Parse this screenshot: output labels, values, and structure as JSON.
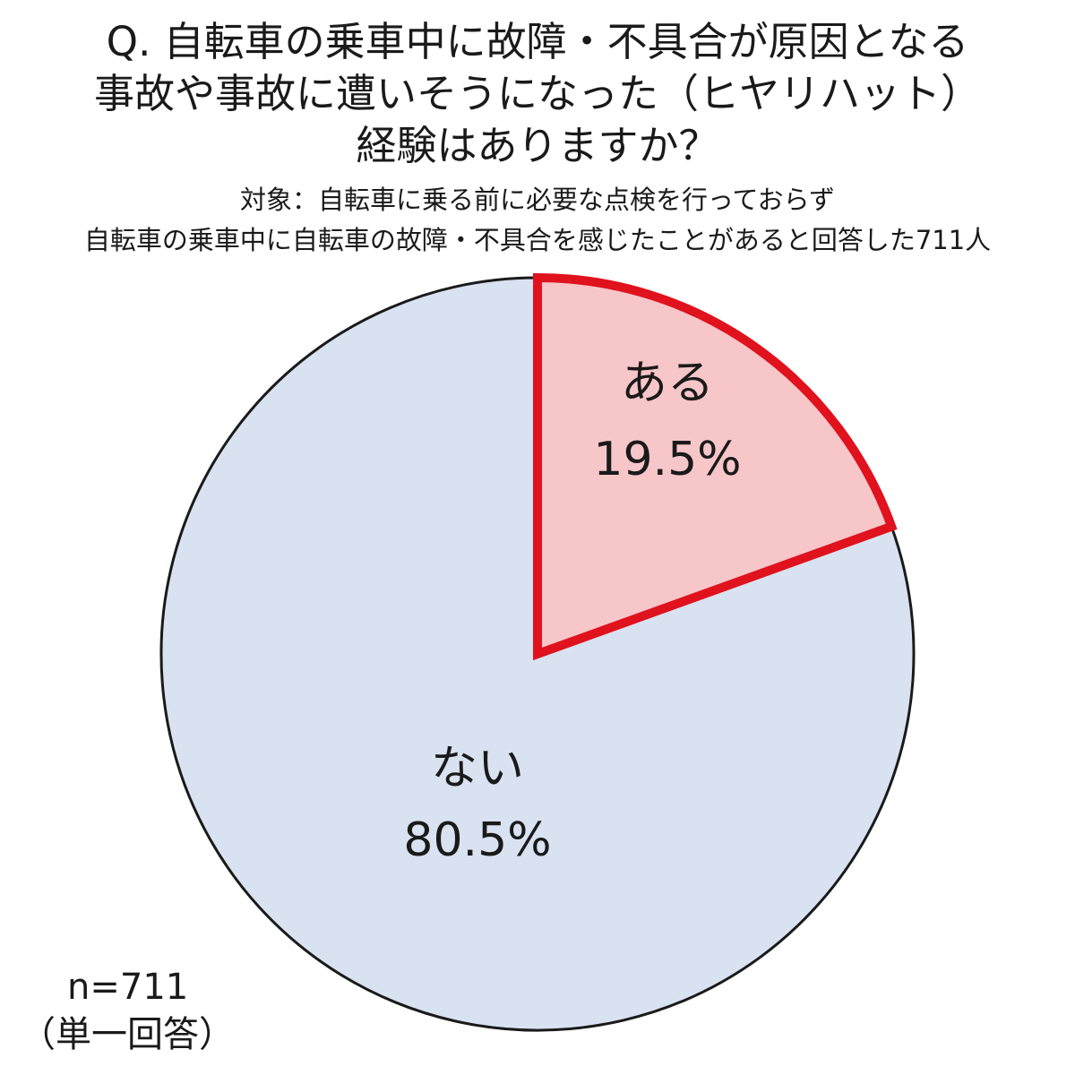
{
  "chart_data": {
    "type": "pie",
    "title_lines": [
      "Q. 自転車の乗車中に故障・不具合が原因となる",
      "事故や事故に遭いそうになった（ヒヤリハット）",
      "経験はありますか？"
    ],
    "subtitle_lines": [
      "対象：自転車に乗る前に必要な点検を行っておらず",
      "自転車の乗車中に自転車の故障・不具合を感じたことがあると回答した711人"
    ],
    "slices": [
      {
        "label": "ある",
        "value": 19.5,
        "value_label": "19.5%",
        "fill": "#f7c6c9",
        "stroke": "#e0121d",
        "highlighted": true
      },
      {
        "label": "ない",
        "value": 80.5,
        "value_label": "80.5%",
        "fill": "#d9e2f1",
        "stroke": "#1a1a1a",
        "highlighted": false
      }
    ],
    "start_angle": "12 o'clock",
    "direction": "clockwise",
    "sample_size": "n=711",
    "answer_type": "（単一回答）"
  }
}
